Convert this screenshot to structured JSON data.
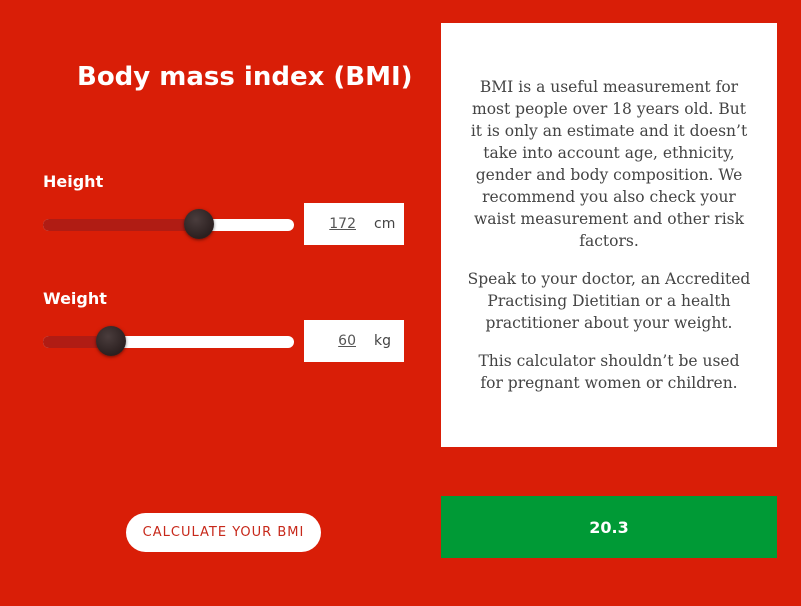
{
  "title": "Body mass index (BMI)",
  "height": {
    "label": "Height",
    "value": "172",
    "unit": "cm",
    "slider_fraction": 0.62
  },
  "weight": {
    "label": "Weight",
    "value": "60",
    "unit": "kg",
    "slider_fraction": 0.27
  },
  "info": {
    "paragraphs": [
      "BMI is a useful measurement for most people over 18 years old. But it is only an estimate and it doesn’t take into account age, ethnicity, gender and body composition. We recommend you also check your waist measurement and other risk factors.",
      "Speak to your doctor, an Accredited Practising Dietitian or a health practitioner about your weight.",
      "This calculator shouldn’t be used for pregnant women or children."
    ]
  },
  "calculate_button": "CALCULATE YOUR BMI",
  "result": "20.3",
  "colors": {
    "background": "#d91e07",
    "result": "#009a36",
    "button_text": "#c7281a"
  }
}
